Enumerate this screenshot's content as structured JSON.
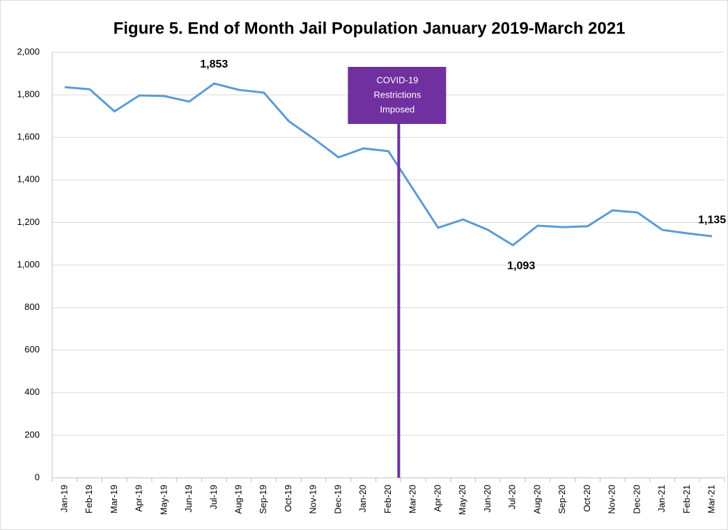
{
  "chart_data": {
    "type": "line",
    "title": "Figure 5. End of Month Jail Population January 2019-March 2021",
    "categories": [
      "Jan-19",
      "Feb-19",
      "Mar-19",
      "Apr-19",
      "May-19",
      "Jun-19",
      "Jul-19",
      "Aug-19",
      "Sep-19",
      "Oct-19",
      "Nov-19",
      "Dec-19",
      "Jan-20",
      "Feb-20",
      "Mar-20",
      "Apr-20",
      "May-20",
      "Jun-20",
      "Jul-20",
      "Aug-20",
      "Sep-20",
      "Oct-20",
      "Nov-20",
      "Dec-20",
      "Jan-21",
      "Feb-21",
      "Mar-21"
    ],
    "values": [
      1836,
      1826,
      1722,
      1797,
      1794,
      1768,
      1853,
      1823,
      1810,
      1676,
      1594,
      1506,
      1548,
      1535,
      1355,
      1175,
      1214,
      1165,
      1093,
      1185,
      1178,
      1182,
      1257,
      1247,
      1165,
      1149,
      1135
    ],
    "value_labels": [
      null,
      null,
      null,
      null,
      null,
      null,
      "1,853",
      null,
      null,
      null,
      null,
      null,
      null,
      null,
      null,
      null,
      null,
      null,
      "1,093",
      null,
      null,
      null,
      null,
      null,
      null,
      null,
      "1,135"
    ],
    "color": "#5b9bd5",
    "ylim": [
      0,
      2000
    ],
    "yticks": [
      0,
      200,
      400,
      600,
      800,
      {
        "value": 1000,
        "label": "1,000"
      },
      {
        "value": 1200,
        "label": "1,200"
      },
      {
        "value": 1400,
        "label": "1,400"
      },
      {
        "value": 1600,
        "label": "1,600"
      },
      {
        "value": 1800,
        "label": "1,800"
      },
      {
        "value": 2000,
        "label": "2,000"
      }
    ],
    "grid": true,
    "annotation": {
      "lines": [
        "COVID-19",
        "Restrictions",
        "Imposed"
      ],
      "color": "#7030a0"
    }
  }
}
